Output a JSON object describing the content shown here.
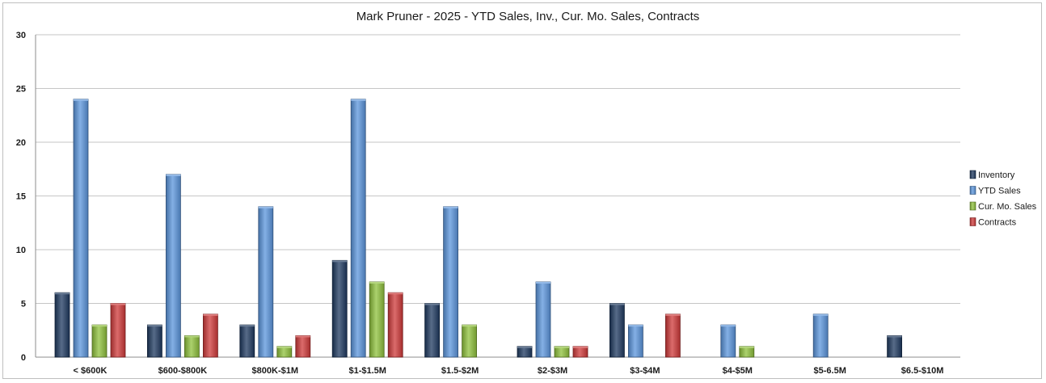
{
  "chart_data": {
    "type": "bar",
    "title": "Mark Pruner - 2025 - YTD Sales, Inv., Cur. Mo. Sales, Contracts",
    "xlabel": "",
    "ylabel": "",
    "ylim": [
      0,
      30
    ],
    "yticks": [
      0,
      5,
      10,
      15,
      20,
      25,
      30
    ],
    "grid": true,
    "legend_position": "right",
    "categories": [
      "< $600K",
      "$600-$800K",
      "$800K-$1M",
      "$1-$1.5M",
      "$1.5-$2M",
      "$2-$3M",
      "$3-$4M",
      "$4-$5M",
      "$5-6.5M",
      "$6.5-$10M"
    ],
    "series": [
      {
        "name": "Inventory",
        "color": "#1f3a60",
        "values": [
          6,
          3,
          3,
          9,
          5,
          1,
          5,
          0,
          0,
          2
        ]
      },
      {
        "name": "YTD Sales",
        "color": "#5b95dc",
        "values": [
          24,
          17,
          14,
          24,
          14,
          7,
          3,
          3,
          4,
          0
        ]
      },
      {
        "name": "Cur. Mo. Sales",
        "color": "#8fc13c",
        "values": [
          3,
          2,
          1,
          7,
          3,
          1,
          0,
          1,
          0,
          0
        ]
      },
      {
        "name": "Contracts",
        "color": "#cf3a3a",
        "values": [
          5,
          4,
          2,
          6,
          0,
          1,
          4,
          0,
          0,
          0
        ]
      }
    ]
  }
}
